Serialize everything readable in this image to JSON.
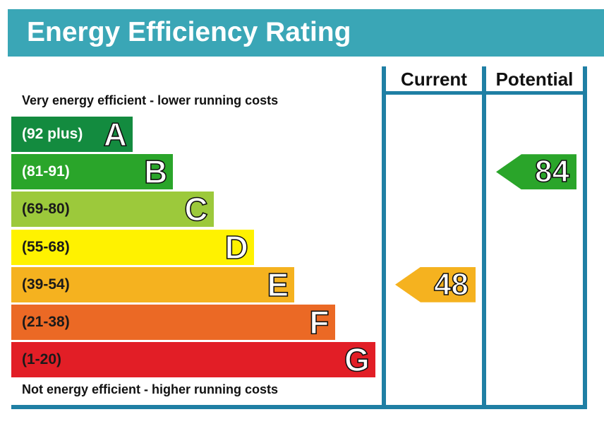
{
  "header": {
    "title": "Energy Efficiency Rating"
  },
  "columns": {
    "current": "Current",
    "potential": "Potential"
  },
  "top_label": "Very energy efficient - lower running costs",
  "bottom_label": "Not energy efficient - higher running costs",
  "chart_data": {
    "type": "bar",
    "title": "Energy Efficiency Rating",
    "bands": [
      {
        "letter": "A",
        "range": "(92 plus)",
        "color": "#138b3f",
        "light_text": true
      },
      {
        "letter": "B",
        "range": "(81-91)",
        "color": "#2aa52a",
        "light_text": true
      },
      {
        "letter": "C",
        "range": "(69-80)",
        "color": "#9cc93b",
        "light_text": false
      },
      {
        "letter": "D",
        "range": "(55-68)",
        "color": "#fff200",
        "light_text": false
      },
      {
        "letter": "E",
        "range": "(39-54)",
        "color": "#f5b21f",
        "light_text": false
      },
      {
        "letter": "F",
        "range": "(21-38)",
        "color": "#eb6925",
        "light_text": false
      },
      {
        "letter": "G",
        "range": "(1-20)",
        "color": "#e21e26",
        "light_text": false
      }
    ],
    "current": {
      "value": 48,
      "band": "E",
      "color": "#f5b21f"
    },
    "potential": {
      "value": 84,
      "band": "B",
      "color": "#2aa52a"
    }
  }
}
